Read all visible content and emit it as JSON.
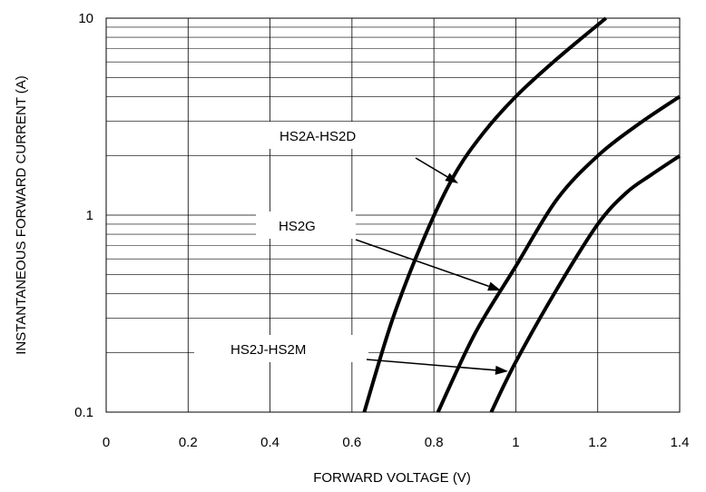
{
  "chart_data": {
    "type": "line",
    "xlabel": "FORWARD VOLTAGE (V)",
    "ylabel": "INSTANTANEOUS FORWARD CURRENT (A)",
    "xlim": [
      0,
      1.4
    ],
    "ylim": [
      0.1,
      10
    ],
    "yscale": "log",
    "grid": true,
    "x_ticks": [
      "0",
      "0.2",
      "0.4",
      "0.6",
      "0.8",
      "1",
      "1.2",
      "1.4"
    ],
    "y_ticks": [
      "0.1",
      "1",
      "10"
    ],
    "series": [
      {
        "name": "HS2A-HS2D",
        "points": [
          [
            0.63,
            0.1
          ],
          [
            0.7,
            0.3
          ],
          [
            0.78,
            0.8
          ],
          [
            0.85,
            1.6
          ],
          [
            0.92,
            2.6
          ],
          [
            1.0,
            4.0
          ],
          [
            1.1,
            6.2
          ],
          [
            1.22,
            10
          ]
        ]
      },
      {
        "name": "HS2G",
        "points": [
          [
            0.81,
            0.1
          ],
          [
            0.9,
            0.25
          ],
          [
            1.0,
            0.55
          ],
          [
            1.1,
            1.2
          ],
          [
            1.2,
            2.0
          ],
          [
            1.3,
            2.9
          ],
          [
            1.4,
            4.0
          ]
        ]
      },
      {
        "name": "HS2J-HS2M",
        "points": [
          [
            0.94,
            0.1
          ],
          [
            1.0,
            0.18
          ],
          [
            1.1,
            0.42
          ],
          [
            1.2,
            0.9
          ],
          [
            1.27,
            1.3
          ],
          [
            1.33,
            1.6
          ],
          [
            1.4,
            2.0
          ]
        ]
      }
    ],
    "annotations": [
      {
        "text": "HS2A-HS2D",
        "target_series": 0
      },
      {
        "text": "HS2G",
        "target_series": 1
      },
      {
        "text": "HS2J-HS2M",
        "target_series": 2
      }
    ]
  }
}
